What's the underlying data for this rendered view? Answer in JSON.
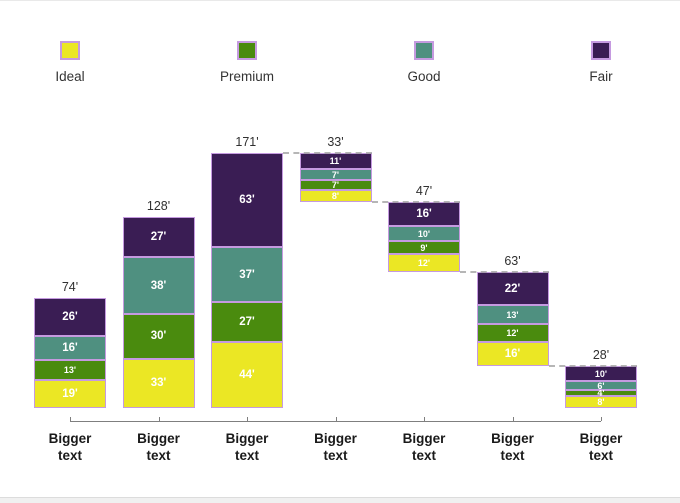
{
  "page": {
    "background": "#ffffff",
    "top_border_color": "#e9e9e9",
    "bottom_band_color": "#f0f0f0"
  },
  "chart_data": {
    "type": "bar",
    "subtype": "stacked-waterfall-cascade",
    "title": "",
    "legend_position": "top",
    "grid": false,
    "value_suffix": "'",
    "categories": [
      "Bigger text",
      "Bigger text",
      "Bigger text",
      "Bigger text",
      "Bigger text",
      "Bigger text",
      "Bigger text"
    ],
    "series": [
      {
        "name": "Ideal",
        "color": "#ebe724",
        "values": [
          19,
          33,
          44,
          8,
          12,
          16,
          8
        ]
      },
      {
        "name": "Premium",
        "color": "#4a8b0e",
        "values": [
          13,
          30,
          27,
          7,
          9,
          12,
          4
        ]
      },
      {
        "name": "Good",
        "color": "#4f9080",
        "values": [
          16,
          38,
          37,
          7,
          10,
          13,
          6
        ]
      },
      {
        "name": "Fair",
        "color": "#3a1d54",
        "values": [
          26,
          27,
          63,
          11,
          16,
          22,
          10
        ]
      }
    ],
    "totals": [
      74,
      128,
      171,
      33,
      47,
      63,
      28
    ],
    "total_labels": [
      "74'",
      "128'",
      "171'",
      "33'",
      "47'",
      "63'",
      "28'"
    ],
    "baselines": [
      0,
      0,
      0,
      138,
      91,
      28,
      0
    ],
    "ylim": [
      0,
      180
    ],
    "segment_border_color": "#c59ae0",
    "segment_label_color": "#ffffff",
    "total_label_color": "#303030",
    "connector_color": "#9e9e9e",
    "connector_style": "dashed",
    "axis_color": "#7f7f7f"
  },
  "legend": {
    "items": [
      {
        "label": "Ideal"
      },
      {
        "label": "Premium"
      },
      {
        "label": "Good"
      },
      {
        "label": "Fair"
      }
    ]
  }
}
